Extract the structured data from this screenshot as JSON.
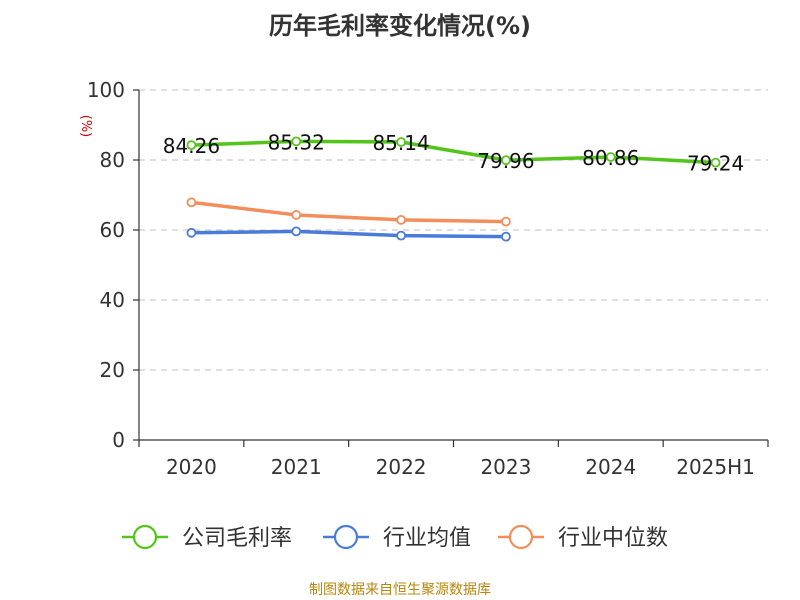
{
  "chart_data": {
    "type": "line",
    "title": "历年毛利率变化情况(%)",
    "ylabel": "(%)",
    "xlabel": "",
    "categories": [
      "2020",
      "2021",
      "2022",
      "2023",
      "2024",
      "2025H1"
    ],
    "ylim": [
      0,
      100
    ],
    "yticks": [
      0,
      20,
      40,
      60,
      80,
      100
    ],
    "grid": true,
    "legend_position": "bottom",
    "series": [
      {
        "name": "公司毛利率",
        "color": "#52c41a",
        "values": [
          84.26,
          85.32,
          85.14,
          79.96,
          80.86,
          79.24
        ],
        "labels": [
          "84.26",
          "85.32",
          "85.14",
          "79.96",
          "80.86",
          "79.24"
        ]
      },
      {
        "name": "行业均值",
        "color": "#4a7bd8",
        "values": [
          59.2,
          59.6,
          58.4,
          58.1,
          null,
          null
        ]
      },
      {
        "name": "行业中位数",
        "color": "#f28e5c",
        "values": [
          67.9,
          64.3,
          62.9,
          62.4,
          null,
          null
        ]
      }
    ]
  },
  "source": "制图数据来自恒生聚源数据库",
  "colors": {
    "axis": "#333333",
    "grid": "#cccccc",
    "ylabel": "#cc0000",
    "source": "#b8860b"
  }
}
